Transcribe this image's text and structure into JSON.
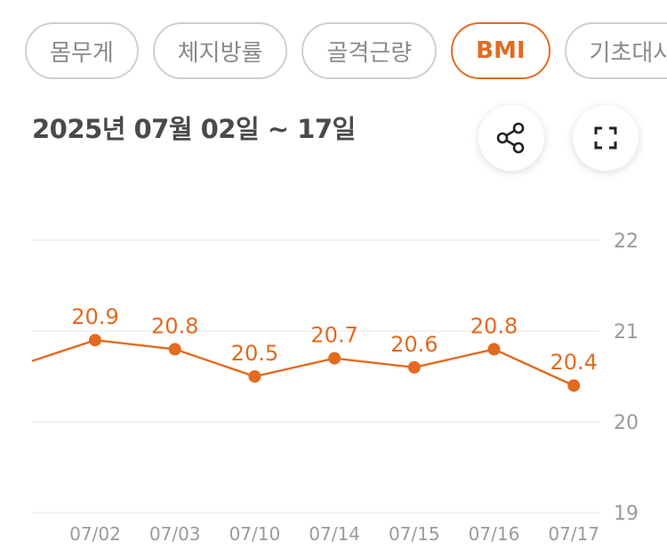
{
  "tabs": [
    {
      "label": "몸무게",
      "active": false
    },
    {
      "label": "체지방률",
      "active": false
    },
    {
      "label": "골격근량",
      "active": false
    },
    {
      "label": "BMI",
      "active": true
    },
    {
      "label": "기초대사",
      "active": false
    }
  ],
  "date_range": "2025년 07월 02일 ~ 17일",
  "icons": {
    "share": "share-icon",
    "expand": "fullscreen-icon"
  },
  "colors": {
    "accent": "#e46a1f",
    "grid": "#eeeeee",
    "tick_text": "#9a9a9a"
  },
  "chart_data": {
    "type": "line",
    "title": "",
    "xlabel": "",
    "ylabel": "",
    "categories": [
      "07/02",
      "07/03",
      "07/10",
      "07/14",
      "07/15",
      "07/16",
      "07/17"
    ],
    "series": [
      {
        "values": [
          20.9,
          20.8,
          20.5,
          20.7,
          20.6,
          20.8,
          20.4
        ]
      }
    ],
    "value_labels": [
      "20.9",
      "20.8",
      "20.5",
      "20.7",
      "20.6",
      "20.8",
      "20.4"
    ],
    "line_starts_off_left_at": 20.67,
    "ylim": [
      19,
      22
    ],
    "yticks": [
      22,
      21,
      20,
      19
    ],
    "ytick_labels": [
      "22",
      "21",
      "20",
      "19"
    ],
    "grid": true,
    "y_axis_side": "right"
  }
}
